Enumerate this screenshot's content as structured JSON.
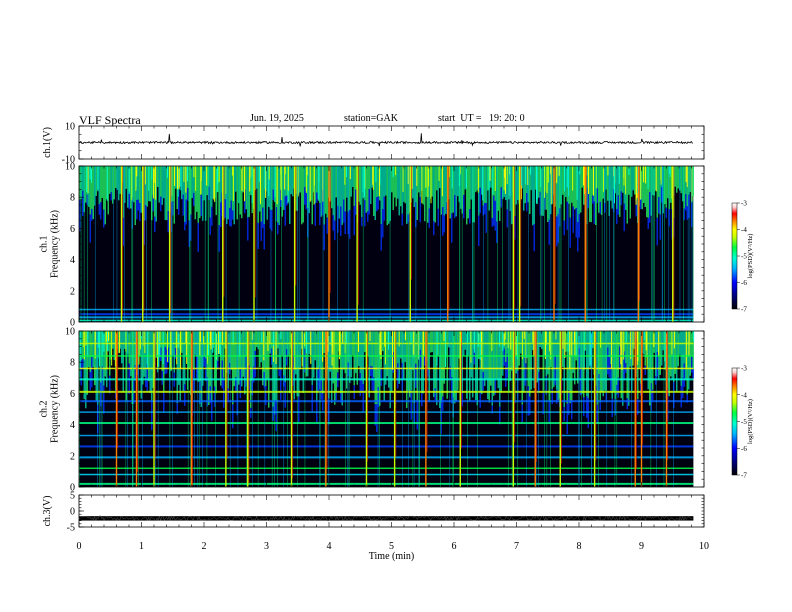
{
  "header": {
    "title": "VLF Spectra",
    "date": "Jun. 19, 2025",
    "station": "station=GAK",
    "start": "start  UT =   19: 20: 0"
  },
  "colors": {
    "waveform": "#000000",
    "background": "#000020",
    "colormap": [
      "#000000",
      "#00007a",
      "#0000ff",
      "#00b0ff",
      "#00ffd0",
      "#00ff40",
      "#c8ff00",
      "#ffff00",
      "#ff8000",
      "#ff0000",
      "#ffd0d0",
      "#ffffff"
    ]
  },
  "chart_data": [
    {
      "type": "line",
      "panel": "ch1-waveform",
      "ylabel": "ch.1(V)",
      "ylim": [
        -10,
        10
      ],
      "y_ticks": [
        "10",
        "-10"
      ],
      "baseline": 0,
      "description_level": "noise around 0 V with occasional spikes"
    },
    {
      "type": "heatmap",
      "panel": "ch1-spectrogram",
      "ylabel": "ch.1\nFrequency (kHz)",
      "ylabel_lines": [
        "ch.1",
        "Frequency (kHz)"
      ],
      "ylim": [
        0,
        10
      ],
      "y_ticks": [
        "0",
        "2",
        "4",
        "6",
        "8",
        "10"
      ],
      "xlim": [
        0,
        10
      ],
      "data_end_min": 9.83,
      "colorbar": {
        "label": "log(PSD)(V²/Hz)",
        "ticks": [
          "-3",
          "-4",
          "-5",
          "-6",
          "-7"
        ],
        "range": [
          -7,
          -3
        ]
      },
      "strong_lines_min": [
        0.68,
        1.02,
        1.45,
        2.3,
        2.8,
        3.45,
        4.0,
        4.45,
        5.3,
        5.9,
        6.95,
        7.05,
        7.6,
        8.1,
        8.95,
        9.5
      ]
    },
    {
      "type": "heatmap",
      "panel": "ch2-spectrogram",
      "ylabel": "ch.2\nFrequency (kHz)",
      "ylabel_lines": [
        "ch.2",
        "Frequency (kHz)"
      ],
      "ylim": [
        0,
        10
      ],
      "y_ticks": [
        "0",
        "2",
        "4",
        "6",
        "8",
        "10"
      ],
      "xlim": [
        0,
        10
      ],
      "data_end_min": 9.83,
      "colorbar": {
        "label": "log(PSD)(V²/Hz)",
        "ticks": [
          "-3",
          "-4",
          "-5",
          "-6",
          "-7"
        ],
        "range": [
          -7,
          -3
        ]
      },
      "strong_lines_min": [
        0.6,
        0.92,
        1.2,
        1.8,
        2.35,
        2.7,
        3.4,
        3.95,
        4.6,
        5.05,
        5.55,
        6.1,
        6.95,
        7.3,
        7.7,
        8.25,
        8.9,
        9.0,
        9.4
      ]
    },
    {
      "type": "line",
      "panel": "ch3-waveform",
      "ylabel": "ch.3(V)",
      "ylim": [
        -5,
        5
      ],
      "y_ticks": [
        "5",
        "0",
        "-5"
      ],
      "baseline": -2.3,
      "description_level": "constant dense oscillation around -2.3 V"
    }
  ],
  "xaxis": {
    "xlabel": "Time (min)",
    "xlim": [
      0,
      10
    ],
    "ticks": [
      "0",
      "1",
      "2",
      "3",
      "4",
      "5",
      "6",
      "7",
      "8",
      "9",
      "10"
    ]
  }
}
